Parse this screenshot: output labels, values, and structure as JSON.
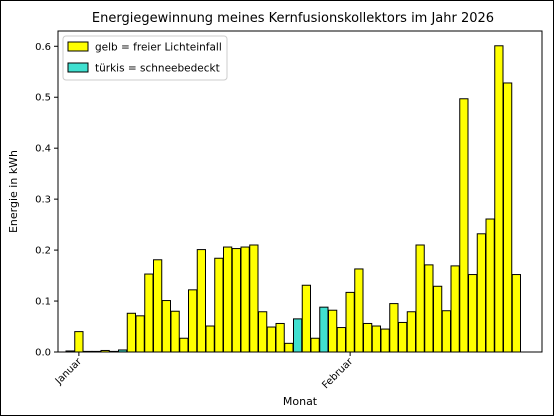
{
  "chart_data": {
    "type": "bar",
    "title": "Energiegewinnung meines Kernfusionskollektors im Jahr 2026",
    "xlabel": "Monat",
    "ylabel": "Energie in kWh",
    "ylim": [
      0,
      0.63
    ],
    "yticks": [
      "0.0",
      "0.1",
      "0.2",
      "0.3",
      "0.4",
      "0.5",
      "0.6"
    ],
    "xticks": [
      {
        "label": "Januar",
        "bar_index": 1
      },
      {
        "label": "Februar",
        "bar_index": 32
      }
    ],
    "legend": {
      "position": "top-left",
      "entries": [
        {
          "label": "gelb = freier Lichteinfall",
          "color": "#ffff00"
        },
        {
          "label": "türkis = schneebedeckt",
          "color": "#40e0d0"
        }
      ]
    },
    "colors": {
      "free": "#ffff00",
      "snow": "#40e0d0",
      "edge": "#000000"
    },
    "series": [
      {
        "values": [
          0.002,
          0.04,
          0.001,
          0.001,
          0.003,
          0.001,
          0.004,
          0.076,
          0.071,
          0.153,
          0.181,
          0.101,
          0.08,
          0.027,
          0.122,
          0.201,
          0.051,
          0.184,
          0.206,
          0.203,
          0.206,
          0.21,
          0.079,
          0.049,
          0.056,
          0.017,
          0.065,
          0.131,
          0.027,
          0.088,
          0.082,
          0.048,
          0.117,
          0.163,
          0.056,
          0.051,
          0.045,
          0.095,
          0.058,
          0.079,
          0.21,
          0.171,
          0.129,
          0.081,
          0.169,
          0.497,
          0.152,
          0.232,
          0.261,
          0.601,
          0.528,
          0.152
        ],
        "status": [
          "snow",
          "free",
          "free",
          "snow",
          "free",
          "snow",
          "snow",
          "free",
          "free",
          "free",
          "free",
          "free",
          "free",
          "free",
          "free",
          "free",
          "free",
          "free",
          "free",
          "free",
          "free",
          "free",
          "free",
          "free",
          "free",
          "free",
          "snow",
          "free",
          "free",
          "snow",
          "free",
          "free",
          "free",
          "free",
          "free",
          "free",
          "free",
          "free",
          "free",
          "free",
          "free",
          "free",
          "free",
          "free",
          "free",
          "free",
          "free",
          "free",
          "free",
          "free",
          "free",
          "free"
        ]
      }
    ]
  }
}
